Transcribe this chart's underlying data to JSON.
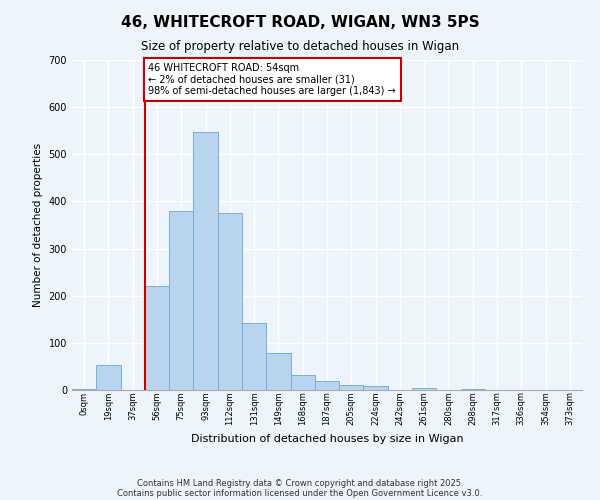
{
  "title": "46, WHITECROFT ROAD, WIGAN, WN3 5PS",
  "subtitle": "Size of property relative to detached houses in Wigan",
  "xlabel": "Distribution of detached houses by size in Wigan",
  "ylabel": "Number of detached properties",
  "bar_color": "#b8d4ee",
  "bar_edge_color": "#7aafd4",
  "background_color": "#eef4fb",
  "grid_color": "#ffffff",
  "bin_labels": [
    "0sqm",
    "19sqm",
    "37sqm",
    "56sqm",
    "75sqm",
    "93sqm",
    "112sqm",
    "131sqm",
    "149sqm",
    "168sqm",
    "187sqm",
    "205sqm",
    "224sqm",
    "242sqm",
    "261sqm",
    "280sqm",
    "298sqm",
    "317sqm",
    "336sqm",
    "354sqm",
    "373sqm"
  ],
  "bar_heights": [
    2,
    52,
    0,
    220,
    380,
    548,
    375,
    142,
    78,
    32,
    20,
    10,
    8,
    0,
    5,
    0,
    3,
    0,
    0,
    0,
    0
  ],
  "ylim": [
    0,
    700
  ],
  "yticks": [
    0,
    100,
    200,
    300,
    400,
    500,
    600,
    700
  ],
  "vline_x_bin": 3,
  "vline_color": "#cc0000",
  "annotation_text": "46 WHITECROFT ROAD: 54sqm\n← 2% of detached houses are smaller (31)\n98% of semi-detached houses are larger (1,843) →",
  "annotation_box_color": "#ffffff",
  "annotation_box_edge_color": "#cc0000",
  "footnote_line1": "Contains HM Land Registry data © Crown copyright and database right 2025.",
  "footnote_line2": "Contains public sector information licensed under the Open Government Licence v3.0."
}
